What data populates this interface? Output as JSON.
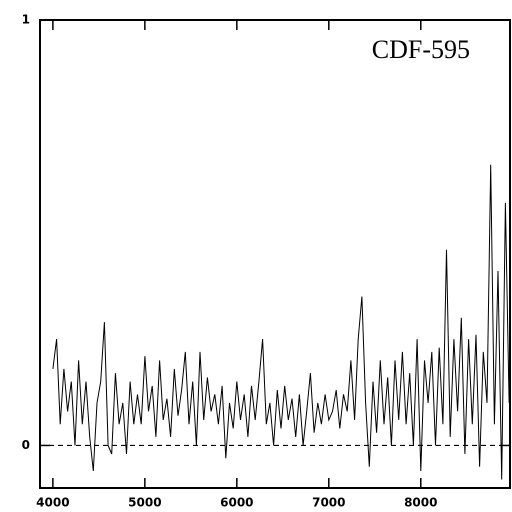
{
  "chart_data": {
    "type": "line",
    "title": "CDF-595",
    "x": [
      4000,
      4040,
      4080,
      4120,
      4160,
      4200,
      4240,
      4280,
      4320,
      4360,
      4400,
      4440,
      4480,
      4520,
      4560,
      4600,
      4640,
      4680,
      4720,
      4760,
      4800,
      4840,
      4880,
      4920,
      4960,
      5000,
      5040,
      5080,
      5120,
      5160,
      5200,
      5240,
      5280,
      5320,
      5360,
      5400,
      5440,
      5480,
      5520,
      5560,
      5600,
      5640,
      5680,
      5720,
      5760,
      5800,
      5840,
      5880,
      5920,
      5960,
      6000,
      6040,
      6080,
      6120,
      6160,
      6200,
      6240,
      6280,
      6320,
      6360,
      6400,
      6440,
      6480,
      6520,
      6560,
      6600,
      6640,
      6680,
      6720,
      6760,
      6800,
      6840,
      6880,
      6920,
      6960,
      7000,
      7040,
      7080,
      7120,
      7160,
      7200,
      7240,
      7280,
      7320,
      7360,
      7400,
      7440,
      7480,
      7520,
      7560,
      7600,
      7640,
      7680,
      7720,
      7760,
      7800,
      7840,
      7880,
      7920,
      7960,
      8000,
      8040,
      8080,
      8120,
      8160,
      8200,
      8240,
      8280,
      8320,
      8360,
      8400,
      8440,
      8480,
      8520,
      8560,
      8600,
      8640,
      8680,
      8720,
      8760,
      8800,
      8840,
      8880,
      8920,
      8960
    ],
    "values": [
      0.18,
      0.25,
      0.05,
      0.18,
      0.08,
      0.15,
      0.0,
      0.2,
      0.05,
      0.15,
      0.02,
      -0.06,
      0.1,
      0.15,
      0.29,
      0.0,
      -0.02,
      0.17,
      0.05,
      0.1,
      -0.02,
      0.15,
      0.05,
      0.12,
      0.05,
      0.21,
      0.08,
      0.14,
      0.02,
      0.2,
      0.06,
      0.11,
      0.02,
      0.18,
      0.07,
      0.13,
      0.22,
      0.05,
      0.15,
      0.0,
      0.22,
      0.06,
      0.16,
      0.08,
      0.12,
      0.05,
      0.14,
      -0.03,
      0.1,
      0.04,
      0.15,
      0.06,
      0.12,
      0.02,
      0.14,
      0.06,
      0.15,
      0.25,
      0.05,
      0.1,
      0.0,
      0.13,
      0.04,
      0.14,
      0.06,
      0.11,
      0.02,
      0.12,
      0.0,
      0.08,
      0.17,
      0.03,
      0.1,
      0.05,
      0.12,
      0.06,
      0.08,
      0.13,
      0.04,
      0.12,
      0.08,
      0.2,
      0.06,
      0.25,
      0.35,
      0.1,
      -0.05,
      0.15,
      0.03,
      0.2,
      0.05,
      0.16,
      0.0,
      0.2,
      0.06,
      0.22,
      0.05,
      0.17,
      0.0,
      0.25,
      -0.06,
      0.2,
      0.1,
      0.22,
      0.0,
      0.23,
      0.05,
      0.46,
      0.02,
      0.25,
      0.08,
      0.3,
      -0.02,
      0.25,
      0.05,
      0.26,
      -0.05,
      0.22,
      0.1,
      0.66,
      0.05,
      0.41,
      -0.08,
      0.57,
      0.1
    ],
    "color": "#000000",
    "xlim": [
      3860,
      8970
    ],
    "xticks": [
      4000,
      5000,
      6000,
      7000,
      8000
    ],
    "ylim": [
      -0.1,
      1
    ],
    "yticks": [
      0,
      1
    ],
    "zero_line": true
  }
}
